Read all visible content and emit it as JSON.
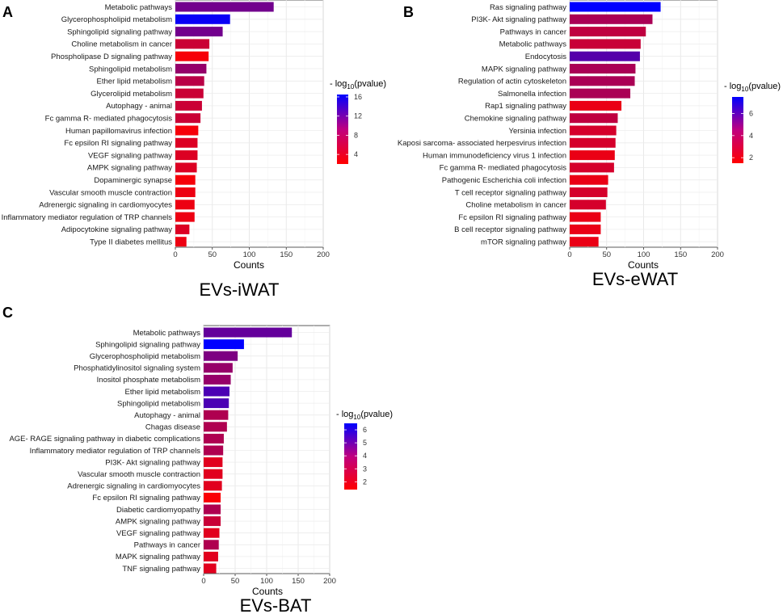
{
  "legend_common": {
    "title_prefix": "- log",
    "title_sub": "10",
    "title_suffix": "(pvalue)"
  },
  "chart_data": [
    {
      "type": "bar",
      "orientation": "horizontal",
      "panel": "A",
      "title": "EVs-iWAT",
      "xlabel": "Counts",
      "ylabel": "",
      "xlim": [
        0,
        200
      ],
      "xticks": [
        0,
        50,
        100,
        150,
        200
      ],
      "categories": [
        "Metabolic pathways",
        "Glycerophospholipid metabolism",
        "Sphingolipid signaling pathway",
        "Choline metabolism in cancer",
        "Phospholipase D signaling pathway",
        "Sphingolipid metabolism",
        "Ether lipid metabolism",
        "Glycerolipid metabolism",
        "Autophagy -  animal",
        "Fc gamma R- mediated phagocytosis",
        "Human papillomavirus infection",
        "Fc epsilon RI signaling pathway",
        "VEGF signaling pathway",
        "AMPK signaling pathway",
        "Dopaminergic synapse",
        "Vascular smooth muscle contraction",
        "Adrenergic signaling in cardiomyocytes",
        "Inflammatory mediator regulation of TRP channels",
        "Adipocytokine signaling pathway",
        "Type II diabetes mellitus"
      ],
      "values": [
        133,
        74,
        64,
        46,
        45,
        42,
        39,
        38,
        36,
        34,
        31,
        30,
        30,
        29,
        27,
        27,
        26,
        26,
        19,
        15
      ],
      "color_values": [
        10,
        16,
        10,
        5,
        2.5,
        8,
        6,
        5,
        5,
        5,
        2.5,
        4,
        4,
        4,
        2.5,
        3,
        3,
        3,
        4,
        3
      ],
      "color_scale": {
        "min": 2,
        "max": 16.5,
        "ticks": [
          4,
          8,
          12,
          16
        ],
        "low_color": "#ff0000",
        "high_color": "#0000ff"
      }
    },
    {
      "type": "bar",
      "orientation": "horizontal",
      "panel": "B",
      "title": "EVs-eWAT",
      "xlabel": "Counts",
      "ylabel": "",
      "xlim": [
        0,
        200
      ],
      "xticks": [
        0,
        50,
        100,
        150,
        200
      ],
      "categories": [
        "Ras signaling pathway",
        "PI3K- Akt signaling pathway",
        "Pathways in cancer",
        "Metabolic pathways",
        "Endocytosis",
        "MAPK signaling pathway",
        "Regulation of actin cytoskeleton",
        "Salmonella infection",
        "Rap1 signaling pathway",
        "Chemokine signaling pathway",
        "Yersinia infection",
        "Kaposi sarcoma- associated herpesvirus infection",
        "Human immunodeficiency virus 1 infection",
        "Fc gamma R- mediated phagocytosis",
        "Pathogenic Escherichia coli infection",
        "T cell receptor signaling pathway",
        "Choline metabolism in cancer",
        "Fc epsilon RI signaling pathway",
        "B cell receptor signaling pathway",
        "mTOR signaling pathway"
      ],
      "values": [
        123,
        112,
        103,
        96,
        95,
        89,
        88,
        82,
        70,
        65,
        63,
        62,
        61,
        60,
        52,
        51,
        49,
        42,
        42,
        39
      ],
      "color_values": [
        7.5,
        3.5,
        3,
        2.8,
        5.5,
        3.5,
        3.5,
        3.5,
        2,
        3,
        2.5,
        2.5,
        2,
        2.5,
        2,
        2.5,
        2.5,
        2,
        2,
        2
      ],
      "color_scale": {
        "min": 1.5,
        "max": 7.5,
        "ticks": [
          2,
          4,
          6
        ],
        "low_color": "#ff0000",
        "high_color": "#0000ff"
      }
    },
    {
      "type": "bar",
      "orientation": "horizontal",
      "panel": "C",
      "title": "EVs-BAT",
      "xlabel": "Counts",
      "ylabel": "",
      "xlim": [
        0,
        200
      ],
      "xticks": [
        0,
        50,
        100,
        150,
        200
      ],
      "categories": [
        "Metabolic pathways",
        "Sphingolipid signaling pathway",
        "Glycerophospholipid metabolism",
        "Phosphatidylinositol signaling system",
        "Inositol phosphate metabolism",
        "Ether lipid metabolism",
        "Sphingolipid metabolism",
        "Autophagy -  animal",
        "Chagas disease",
        "AGE- RAGE signaling pathway in diabetic complications",
        "Inflammatory mediator regulation of TRP channels",
        "PI3K- Akt signaling pathway",
        "Vascular smooth muscle contraction",
        "Adrenergic signaling in cardiomyocytes",
        "Fc epsilon RI signaling pathway",
        "Diabetic cardiomyopathy",
        "AMPK signaling pathway",
        "VEGF signaling pathway",
        "Pathways in cancer",
        "MAPK signaling pathway",
        "TNF signaling pathway"
      ],
      "values": [
        140,
        64,
        54,
        46,
        43,
        41,
        40,
        39,
        37,
        32,
        31,
        30,
        30,
        29,
        27,
        27,
        27,
        25,
        24,
        23,
        20
      ],
      "color_values": [
        4.5,
        6.5,
        4,
        3.5,
        3.5,
        5,
        5,
        3,
        3,
        3,
        3,
        2,
        2,
        2,
        1.5,
        3,
        2.5,
        2,
        3,
        2,
        2
      ],
      "color_scale": {
        "min": 1.4,
        "max": 6.5,
        "ticks": [
          2,
          3,
          4,
          5,
          6
        ],
        "low_color": "#ff0000",
        "high_color": "#0000ff"
      }
    }
  ]
}
